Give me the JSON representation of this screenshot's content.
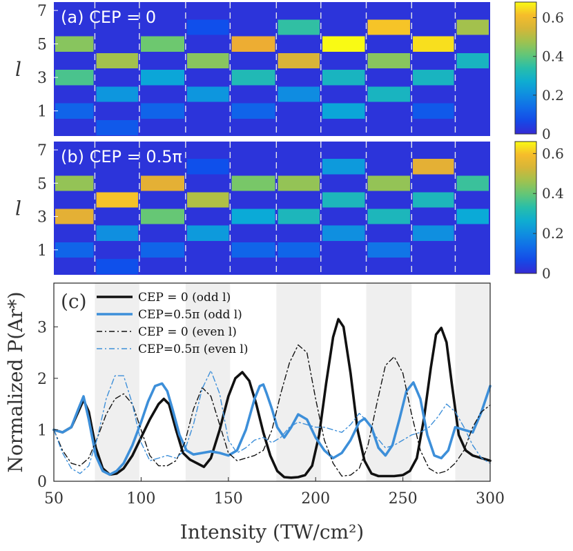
{
  "chart_data": [
    {
      "type": "heatmap",
      "panel_label": "(a) CEP = 0",
      "ylabel": "l",
      "yticks": [
        1,
        3,
        5,
        7
      ],
      "rows_l": [
        0,
        1,
        2,
        3,
        4,
        5,
        6,
        7
      ],
      "xlim": [
        50,
        300
      ],
      "colorbar": {
        "min": 0,
        "max": 0.68,
        "ticks": [
          "0",
          "0.2",
          "0.4",
          "0.6"
        ]
      },
      "boundaries": [
        73.5,
        99,
        125.5,
        151,
        177.5,
        203,
        229,
        255,
        280
      ],
      "cells": [
        {
          "l": 5,
          "x0": 50,
          "x1": 73.5,
          "v": 0.45
        },
        {
          "l": 3,
          "x0": 50,
          "x1": 73.5,
          "v": 0.38
        },
        {
          "l": 1,
          "x0": 50,
          "x1": 73.5,
          "v": 0.12
        },
        {
          "l": 4,
          "x0": 73.5,
          "x1": 99,
          "v": 0.48
        },
        {
          "l": 2,
          "x0": 73.5,
          "x1": 99,
          "v": 0.22
        },
        {
          "l": 0,
          "x0": 73.5,
          "x1": 99,
          "v": 0.1
        },
        {
          "l": 5,
          "x0": 99,
          "x1": 125.5,
          "v": 0.42
        },
        {
          "l": 3,
          "x0": 99,
          "x1": 125.5,
          "v": 0.25
        },
        {
          "l": 1,
          "x0": 99,
          "x1": 125.5,
          "v": 0.12
        },
        {
          "l": 4,
          "x0": 125.5,
          "x1": 151,
          "v": 0.45
        },
        {
          "l": 2,
          "x0": 125.5,
          "x1": 151,
          "v": 0.22
        },
        {
          "l": 6,
          "x0": 125.5,
          "x1": 151,
          "v": 0.08
        },
        {
          "l": 5,
          "x0": 151,
          "x1": 177.5,
          "v": 0.58
        },
        {
          "l": 3,
          "x0": 151,
          "x1": 177.5,
          "v": 0.32
        },
        {
          "l": 1,
          "x0": 151,
          "x1": 177.5,
          "v": 0.12
        },
        {
          "l": 6,
          "x0": 177.5,
          "x1": 203,
          "v": 0.35
        },
        {
          "l": 4,
          "x0": 177.5,
          "x1": 203,
          "v": 0.55
        },
        {
          "l": 2,
          "x0": 177.5,
          "x1": 203,
          "v": 0.2
        },
        {
          "l": 5,
          "x0": 203,
          "x1": 229,
          "v": 0.68
        },
        {
          "l": 3,
          "x0": 203,
          "x1": 229,
          "v": 0.3
        },
        {
          "l": 1,
          "x0": 203,
          "x1": 229,
          "v": 0.25
        },
        {
          "l": 6,
          "x0": 229,
          "x1": 255,
          "v": 0.62
        },
        {
          "l": 4,
          "x0": 229,
          "x1": 255,
          "v": 0.45
        },
        {
          "l": 2,
          "x0": 229,
          "x1": 255,
          "v": 0.3
        },
        {
          "l": 5,
          "x0": 255,
          "x1": 280,
          "v": 0.65
        },
        {
          "l": 3,
          "x0": 255,
          "x1": 280,
          "v": 0.3
        },
        {
          "l": 1,
          "x0": 255,
          "x1": 280,
          "v": 0.1
        },
        {
          "l": 6,
          "x0": 280,
          "x1": 300,
          "v": 0.48
        },
        {
          "l": 4,
          "x0": 280,
          "x1": 300,
          "v": 0.3
        }
      ]
    },
    {
      "type": "heatmap",
      "panel_label": "(b) CEP = 0.5π",
      "ylabel": "l",
      "yticks": [
        1,
        3,
        5,
        7
      ],
      "rows_l": [
        0,
        1,
        2,
        3,
        4,
        5,
        6,
        7
      ],
      "xlim": [
        50,
        300
      ],
      "colorbar": {
        "min": 0,
        "max": 0.66,
        "ticks": [
          "0",
          "0.2",
          "0.4",
          "0.6"
        ]
      },
      "boundaries": [
        73.5,
        99,
        125.5,
        151,
        177.5,
        203,
        229,
        255,
        280
      ],
      "cells": [
        {
          "l": 5,
          "x0": 50,
          "x1": 73.5,
          "v": 0.45
        },
        {
          "l": 3,
          "x0": 50,
          "x1": 73.5,
          "v": 0.55
        },
        {
          "l": 1,
          "x0": 50,
          "x1": 73.5,
          "v": 0.12
        },
        {
          "l": 4,
          "x0": 73.5,
          "x1": 99,
          "v": 0.6
        },
        {
          "l": 2,
          "x0": 73.5,
          "x1": 99,
          "v": 0.2
        },
        {
          "l": 0,
          "x0": 73.5,
          "x1": 99,
          "v": 0.08
        },
        {
          "l": 5,
          "x0": 99,
          "x1": 125.5,
          "v": 0.55
        },
        {
          "l": 3,
          "x0": 99,
          "x1": 125.5,
          "v": 0.4
        },
        {
          "l": 1,
          "x0": 99,
          "x1": 125.5,
          "v": 0.12
        },
        {
          "l": 4,
          "x0": 125.5,
          "x1": 151,
          "v": 0.48
        },
        {
          "l": 2,
          "x0": 125.5,
          "x1": 151,
          "v": 0.22
        },
        {
          "l": 6,
          "x0": 125.5,
          "x1": 151,
          "v": 0.08
        },
        {
          "l": 5,
          "x0": 151,
          "x1": 177.5,
          "v": 0.42
        },
        {
          "l": 3,
          "x0": 151,
          "x1": 177.5,
          "v": 0.25
        },
        {
          "l": 1,
          "x0": 151,
          "x1": 177.5,
          "v": 0.12
        },
        {
          "l": 5,
          "x0": 177.5,
          "x1": 203,
          "v": 0.45
        },
        {
          "l": 3,
          "x0": 177.5,
          "x1": 203,
          "v": 0.3
        },
        {
          "l": 1,
          "x0": 177.5,
          "x1": 203,
          "v": 0.12
        },
        {
          "l": 6,
          "x0": 203,
          "x1": 229,
          "v": 0.22
        },
        {
          "l": 4,
          "x0": 203,
          "x1": 229,
          "v": 0.3
        },
        {
          "l": 2,
          "x0": 203,
          "x1": 229,
          "v": 0.2
        },
        {
          "l": 5,
          "x0": 229,
          "x1": 255,
          "v": 0.45
        },
        {
          "l": 3,
          "x0": 229,
          "x1": 255,
          "v": 0.3
        },
        {
          "l": 1,
          "x0": 229,
          "x1": 255,
          "v": 0.15
        },
        {
          "l": 6,
          "x0": 255,
          "x1": 280,
          "v": 0.55
        },
        {
          "l": 4,
          "x0": 255,
          "x1": 280,
          "v": 0.3
        },
        {
          "l": 2,
          "x0": 255,
          "x1": 280,
          "v": 0.2
        },
        {
          "l": 5,
          "x0": 280,
          "x1": 300,
          "v": 0.35
        },
        {
          "l": 3,
          "x0": 280,
          "x1": 300,
          "v": 0.25
        }
      ]
    },
    {
      "type": "line",
      "panel_label": "(c)",
      "xlabel": "Intensity (TW/cm²)",
      "ylabel": "Normalized P(Ar*)",
      "xlim": [
        50,
        300
      ],
      "ylim": [
        0,
        3.85
      ],
      "xticks": [
        "50",
        "100",
        "150",
        "200",
        "250",
        "300"
      ],
      "yticks": [
        "0",
        "1",
        "2",
        "3"
      ],
      "shaded_bands": [
        [
          73.5,
          99
        ],
        [
          125.5,
          151
        ],
        [
          177.5,
          203
        ],
        [
          229,
          255
        ],
        [
          280,
          300
        ]
      ],
      "series": [
        {
          "name": "CEP = 0 (odd l)",
          "color": "#111111",
          "style": "solid-thick",
          "x": [
            50,
            55,
            60,
            64,
            67,
            70,
            74,
            78,
            82,
            86,
            90,
            95,
            100,
            105,
            110,
            113,
            116,
            120,
            124,
            128,
            132,
            136,
            140,
            145,
            150,
            154,
            158,
            162,
            166,
            170,
            174,
            178,
            182,
            186,
            190,
            194,
            198,
            202,
            206,
            210,
            213,
            216,
            220,
            224,
            228,
            232,
            236,
            240,
            245,
            250,
            254,
            258,
            262,
            266,
            269,
            272,
            275,
            278,
            282,
            286,
            290,
            295,
            300
          ],
          "y": [
            1.0,
            0.95,
            1.05,
            1.35,
            1.58,
            1.35,
            0.65,
            0.25,
            0.13,
            0.15,
            0.25,
            0.5,
            0.85,
            1.2,
            1.5,
            1.6,
            1.5,
            1.0,
            0.55,
            0.42,
            0.35,
            0.28,
            0.45,
            1.0,
            1.65,
            2.0,
            2.12,
            1.95,
            1.5,
            0.95,
            0.5,
            0.2,
            0.08,
            0.07,
            0.08,
            0.12,
            0.3,
            0.9,
            1.9,
            2.8,
            3.15,
            3.0,
            2.1,
            1.0,
            0.4,
            0.15,
            0.1,
            0.1,
            0.1,
            0.12,
            0.2,
            0.45,
            1.2,
            2.2,
            2.85,
            2.98,
            2.7,
            1.9,
            0.9,
            0.6,
            0.5,
            0.45,
            0.4
          ]
        },
        {
          "name": "CEP=0.5π (odd l)",
          "color": "#3d8fd9",
          "style": "solid-thick",
          "x": [
            50,
            55,
            60,
            64,
            67,
            70,
            74,
            78,
            82,
            86,
            90,
            95,
            100,
            104,
            108,
            112,
            115,
            118,
            122,
            126,
            130,
            135,
            140,
            145,
            150,
            155,
            160,
            165,
            168,
            170,
            172,
            175,
            178,
            182,
            186,
            190,
            195,
            200,
            205,
            210,
            215,
            220,
            225,
            228,
            232,
            236,
            240,
            244,
            248,
            252,
            256,
            260,
            264,
            268,
            272,
            276,
            280,
            285,
            290,
            295,
            300
          ],
          "y": [
            1.0,
            0.95,
            1.05,
            1.4,
            1.65,
            1.2,
            0.5,
            0.2,
            0.13,
            0.2,
            0.35,
            0.7,
            1.15,
            1.55,
            1.85,
            1.9,
            1.75,
            1.4,
            0.9,
            0.6,
            0.52,
            0.55,
            0.58,
            0.55,
            0.5,
            0.6,
            1.0,
            1.6,
            1.85,
            1.88,
            1.7,
            1.4,
            1.05,
            0.85,
            1.05,
            1.3,
            1.2,
            0.85,
            0.6,
            0.45,
            0.55,
            0.8,
            1.15,
            1.22,
            1.05,
            0.65,
            0.5,
            0.7,
            1.2,
            1.75,
            1.92,
            1.6,
            0.9,
            0.5,
            0.45,
            0.6,
            1.05,
            1.0,
            0.95,
            1.35,
            1.85
          ]
        },
        {
          "name": "CEP = 0 (even l)",
          "color": "#111111",
          "style": "dashdot-thin",
          "x": [
            50,
            55,
            60,
            65,
            70,
            75,
            80,
            85,
            90,
            95,
            100,
            105,
            110,
            115,
            120,
            125,
            130,
            135,
            140,
            145,
            150,
            155,
            160,
            165,
            170,
            175,
            180,
            185,
            190,
            195,
            200,
            205,
            210,
            215,
            220,
            225,
            230,
            235,
            240,
            245,
            250,
            255,
            260,
            265,
            270,
            275,
            280,
            285,
            290,
            295,
            300
          ],
          "y": [
            1.0,
            0.6,
            0.35,
            0.3,
            0.45,
            0.85,
            1.3,
            1.6,
            1.7,
            1.5,
            1.0,
            0.5,
            0.3,
            0.3,
            0.4,
            0.75,
            1.4,
            1.82,
            1.65,
            1.1,
            0.55,
            0.4,
            0.45,
            0.5,
            0.6,
            1.0,
            1.7,
            2.3,
            2.65,
            2.5,
            1.6,
            0.8,
            0.35,
            0.1,
            0.12,
            0.25,
            0.7,
            1.5,
            2.25,
            2.42,
            2.1,
            1.3,
            0.6,
            0.25,
            0.15,
            0.2,
            0.35,
            0.6,
            1.05,
            1.35,
            1.48
          ]
        },
        {
          "name": "CEP=0.5π (even l)",
          "color": "#3d8fd9",
          "style": "dashdot-thin",
          "x": [
            50,
            55,
            60,
            65,
            70,
            75,
            80,
            85,
            90,
            95,
            100,
            105,
            110,
            115,
            120,
            125,
            130,
            135,
            140,
            145,
            150,
            155,
            160,
            165,
            170,
            175,
            180,
            185,
            190,
            195,
            200,
            205,
            210,
            215,
            220,
            225,
            230,
            235,
            240,
            245,
            250,
            255,
            260,
            265,
            270,
            275,
            280,
            285,
            290,
            295,
            300
          ],
          "y": [
            1.0,
            0.55,
            0.25,
            0.15,
            0.3,
            0.85,
            1.6,
            2.05,
            2.05,
            1.5,
            0.75,
            0.4,
            0.45,
            0.5,
            0.45,
            0.6,
            1.1,
            1.8,
            2.15,
            1.7,
            0.8,
            0.55,
            0.65,
            0.8,
            0.85,
            0.75,
            0.85,
            1.05,
            1.15,
            1.1,
            1.05,
            1.05,
            1.0,
            0.95,
            1.1,
            1.32,
            1.15,
            0.85,
            0.65,
            0.7,
            0.8,
            0.9,
            0.95,
            1.05,
            1.25,
            1.5,
            1.35,
            1.05,
            0.7,
            0.45,
            0.35
          ]
        }
      ]
    }
  ]
}
